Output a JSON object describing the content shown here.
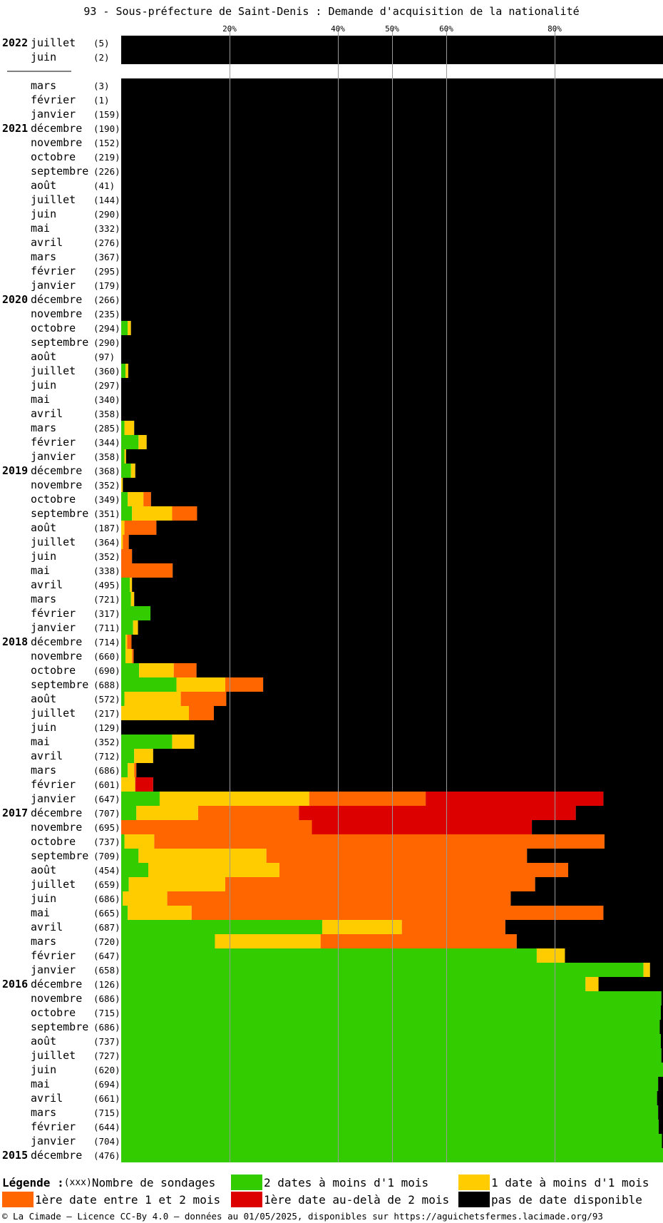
{
  "title": "93 - Sous-préfecture de Saint-Denis : Demande d'acquisition de la nationalité",
  "colors": {
    "green": "#33cc00",
    "yellow": "#ffcc00",
    "orange": "#ff6600",
    "red": "#dd0000",
    "black": "#000000"
  },
  "legend": {
    "title": "Légende :",
    "count_key": "(xxx)",
    "count_label": "Nombre de sondages",
    "green": "2 dates à moins d'1 mois",
    "yellow": "1 date à moins d'1 mois",
    "orange": "1ère date entre 1 et 2 mois",
    "red": "1ère date au-delà de 2 mois",
    "black": "pas de date disponible"
  },
  "footer": "© La Cimade — Licence CC-By 4.0 — données au 01/05/2025, disponibles sur https://aguichetsfermes.lacimade.org/93",
  "chart_data": {
    "type": "bar",
    "orientation": "horizontal",
    "stacked": true,
    "unit": "%",
    "x_ticks": [
      "20%",
      "40%",
      "50%",
      "60%",
      "80%"
    ],
    "tick_values": [
      20,
      40,
      50,
      60,
      80
    ],
    "xlim": [
      0,
      100
    ],
    "grid": true,
    "series_order": [
      "green",
      "yellow",
      "orange",
      "red",
      "black"
    ],
    "rows": [
      {
        "year": "2022",
        "month": "juillet",
        "count": "(5)",
        "green": 0,
        "yellow": 0,
        "orange": 0,
        "red": 0,
        "black": 100
      },
      {
        "year": "",
        "month": "juin",
        "count": "(2)",
        "green": 0,
        "yellow": 0,
        "orange": 0,
        "red": 0,
        "black": 100
      },
      {
        "year": "",
        "month": "mars",
        "count": "(3)",
        "green": 0,
        "yellow": 0,
        "orange": 0,
        "red": 0,
        "black": 100
      },
      {
        "year": "",
        "month": "février",
        "count": "(1)",
        "green": 0,
        "yellow": 0,
        "orange": 0,
        "red": 0,
        "black": 100
      },
      {
        "year": "",
        "month": "janvier",
        "count": "(159)",
        "green": 0,
        "yellow": 0,
        "orange": 0,
        "red": 0,
        "black": 100
      },
      {
        "year": "2021",
        "month": "décembre",
        "count": "(190)",
        "green": 0,
        "yellow": 0,
        "orange": 0,
        "red": 0,
        "black": 100
      },
      {
        "year": "",
        "month": "novembre",
        "count": "(152)",
        "green": 0,
        "yellow": 0,
        "orange": 0,
        "red": 0,
        "black": 100
      },
      {
        "year": "",
        "month": "octobre",
        "count": "(219)",
        "green": 0,
        "yellow": 0,
        "orange": 0,
        "red": 0,
        "black": 100
      },
      {
        "year": "",
        "month": "septembre",
        "count": "(226)",
        "green": 0,
        "yellow": 0,
        "orange": 0,
        "red": 0,
        "black": 100
      },
      {
        "year": "",
        "month": "août",
        "count": "(41)",
        "green": 0,
        "yellow": 0,
        "orange": 0,
        "red": 0,
        "black": 100
      },
      {
        "year": "",
        "month": "juillet",
        "count": "(144)",
        "green": 0,
        "yellow": 0,
        "orange": 0,
        "red": 0,
        "black": 100
      },
      {
        "year": "",
        "month": "juin",
        "count": "(290)",
        "green": 0,
        "yellow": 0,
        "orange": 0,
        "red": 0,
        "black": 100
      },
      {
        "year": "",
        "month": "mai",
        "count": "(332)",
        "green": 0,
        "yellow": 0,
        "orange": 0,
        "red": 0,
        "black": 100
      },
      {
        "year": "",
        "month": "avril",
        "count": "(276)",
        "green": 0,
        "yellow": 0,
        "orange": 0,
        "red": 0,
        "black": 100
      },
      {
        "year": "",
        "month": "mars",
        "count": "(367)",
        "green": 0,
        "yellow": 0,
        "orange": 0,
        "red": 0,
        "black": 100
      },
      {
        "year": "",
        "month": "février",
        "count": "(295)",
        "green": 0,
        "yellow": 0,
        "orange": 0,
        "red": 0,
        "black": 100
      },
      {
        "year": "",
        "month": "janvier",
        "count": "(179)",
        "green": 0,
        "yellow": 0,
        "orange": 0,
        "red": 0,
        "black": 100
      },
      {
        "year": "2020",
        "month": "décembre",
        "count": "(266)",
        "green": 0,
        "yellow": 0,
        "orange": 0,
        "red": 0,
        "black": 100
      },
      {
        "year": "",
        "month": "novembre",
        "count": "(235)",
        "green": 0,
        "yellow": 0,
        "orange": 0,
        "red": 0,
        "black": 100
      },
      {
        "year": "",
        "month": "octobre",
        "count": "(294)",
        "green": 1.2,
        "yellow": 0.6,
        "orange": 0,
        "red": 0,
        "black": 98.2
      },
      {
        "year": "",
        "month": "septembre",
        "count": "(290)",
        "green": 0,
        "yellow": 0,
        "orange": 0,
        "red": 0,
        "black": 100
      },
      {
        "year": "",
        "month": "août",
        "count": "(97)",
        "green": 0,
        "yellow": 0,
        "orange": 0,
        "red": 0,
        "black": 100
      },
      {
        "year": "",
        "month": "juillet",
        "count": "(360)",
        "green": 0.8,
        "yellow": 0.5,
        "orange": 0,
        "red": 0,
        "black": 98.7
      },
      {
        "year": "",
        "month": "juin",
        "count": "(297)",
        "green": 0,
        "yellow": 0,
        "orange": 0,
        "red": 0,
        "black": 100
      },
      {
        "year": "",
        "month": "mai",
        "count": "(340)",
        "green": 0,
        "yellow": 0,
        "orange": 0,
        "red": 0,
        "black": 100
      },
      {
        "year": "",
        "month": "avril",
        "count": "(358)",
        "green": 0,
        "yellow": 0,
        "orange": 0,
        "red": 0,
        "black": 100
      },
      {
        "year": "",
        "month": "mars",
        "count": "(285)",
        "green": 0.6,
        "yellow": 1.8,
        "orange": 0,
        "red": 0,
        "black": 97.6
      },
      {
        "year": "",
        "month": "février",
        "count": "(344)",
        "green": 3.2,
        "yellow": 1.5,
        "orange": 0,
        "red": 0,
        "black": 95.3
      },
      {
        "year": "",
        "month": "janvier",
        "count": "(358)",
        "green": 0.6,
        "yellow": 0.3,
        "orange": 0,
        "red": 0,
        "black": 99.1
      },
      {
        "year": "2019",
        "month": "décembre",
        "count": "(368)",
        "green": 1.8,
        "yellow": 0.8,
        "orange": 0,
        "red": 0,
        "black": 97.4
      },
      {
        "year": "",
        "month": "novembre",
        "count": "(352)",
        "green": 0,
        "yellow": 0.3,
        "orange": 0,
        "red": 0,
        "black": 99.7
      },
      {
        "year": "",
        "month": "octobre",
        "count": "(349)",
        "green": 1.2,
        "yellow": 2.9,
        "orange": 1.4,
        "red": 0,
        "black": 94.5
      },
      {
        "year": "",
        "month": "septembre",
        "count": "(351)",
        "green": 2.0,
        "yellow": 7.4,
        "orange": 4.6,
        "red": 0,
        "black": 86.0
      },
      {
        "year": "",
        "month": "août",
        "count": "(187)",
        "green": 0,
        "yellow": 0.6,
        "orange": 5.9,
        "red": 0,
        "black": 93.5
      },
      {
        "year": "",
        "month": "juillet",
        "count": "(364)",
        "green": 0,
        "yellow": 0.3,
        "orange": 1.1,
        "red": 0,
        "black": 98.6
      },
      {
        "year": "",
        "month": "juin",
        "count": "(352)",
        "green": 0,
        "yellow": 0,
        "orange": 2.0,
        "red": 0,
        "black": 98.0
      },
      {
        "year": "",
        "month": "mai",
        "count": "(338)",
        "green": 0,
        "yellow": 0,
        "orange": 9.5,
        "red": 0,
        "black": 90.5
      },
      {
        "year": "",
        "month": "avril",
        "count": "(495)",
        "green": 1.6,
        "yellow": 0.4,
        "orange": 0,
        "red": 0,
        "black": 98.0
      },
      {
        "year": "",
        "month": "mars",
        "count": "(721)",
        "green": 1.8,
        "yellow": 0.6,
        "orange": 0,
        "red": 0,
        "black": 97.6
      },
      {
        "year": "",
        "month": "février",
        "count": "(317)",
        "green": 5.4,
        "yellow": 0,
        "orange": 0,
        "red": 0,
        "black": 94.6
      },
      {
        "year": "",
        "month": "janvier",
        "count": "(711)",
        "green": 2.2,
        "yellow": 0.9,
        "orange": 0,
        "red": 0,
        "black": 96.9
      },
      {
        "year": "2018",
        "month": "décembre",
        "count": "(714)",
        "green": 0.8,
        "yellow": 0.3,
        "orange": 0.8,
        "red": 0,
        "black": 98.1
      },
      {
        "year": "",
        "month": "novembre",
        "count": "(660)",
        "green": 0.8,
        "yellow": 1.2,
        "orange": 0.3,
        "red": 0,
        "black": 97.7
      },
      {
        "year": "",
        "month": "octobre",
        "count": "(690)",
        "green": 3.3,
        "yellow": 6.4,
        "orange": 4.2,
        "red": 0,
        "black": 86.1
      },
      {
        "year": "",
        "month": "septembre",
        "count": "(688)",
        "green": 10.2,
        "yellow": 9.0,
        "orange": 7.0,
        "red": 0,
        "black": 73.8
      },
      {
        "year": "",
        "month": "août",
        "count": "(572)",
        "green": 0.6,
        "yellow": 10.4,
        "orange": 8.4,
        "red": 0,
        "black": 80.6
      },
      {
        "year": "",
        "month": "juillet",
        "count": "(217)",
        "green": 0,
        "yellow": 12.5,
        "orange": 4.6,
        "red": 0,
        "black": 82.9
      },
      {
        "year": "",
        "month": "juin",
        "count": "(129)",
        "green": 0,
        "yellow": 0,
        "orange": 0,
        "red": 0,
        "black": 100
      },
      {
        "year": "",
        "month": "mai",
        "count": "(352)",
        "green": 9.4,
        "yellow": 4.1,
        "orange": 0,
        "red": 0,
        "black": 86.5
      },
      {
        "year": "",
        "month": "avril",
        "count": "(712)",
        "green": 2.4,
        "yellow": 3.5,
        "orange": 0,
        "red": 0,
        "black": 94.1
      },
      {
        "year": "",
        "month": "mars",
        "count": "(686)",
        "green": 1.2,
        "yellow": 1.2,
        "orange": 0.4,
        "red": 0,
        "black": 97.2
      },
      {
        "year": "",
        "month": "février",
        "count": "(601)",
        "green": 0,
        "yellow": 2.6,
        "orange": 0,
        "red": 3.3,
        "black": 94.1
      },
      {
        "year": "",
        "month": "janvier",
        "count": "(647)",
        "green": 7.1,
        "yellow": 27.6,
        "orange": 21.5,
        "red": 32.8,
        "black": 11.0
      },
      {
        "year": "2017",
        "month": "décembre",
        "count": "(707)",
        "green": 2.8,
        "yellow": 11.4,
        "orange": 18.6,
        "red": 51.1,
        "black": 16.1
      },
      {
        "year": "",
        "month": "novembre",
        "count": "(695)",
        "green": 0,
        "yellow": 0,
        "orange": 35.2,
        "red": 40.6,
        "black": 24.2
      },
      {
        "year": "",
        "month": "octobre",
        "count": "(737)",
        "green": 0.6,
        "yellow": 5.5,
        "orange": 83.1,
        "red": 0,
        "black": 10.8
      },
      {
        "year": "",
        "month": "septembre",
        "count": "(709)",
        "green": 3.2,
        "yellow": 23.6,
        "orange": 48.1,
        "red": 0,
        "black": 25.1
      },
      {
        "year": "",
        "month": "août",
        "count": "(454)",
        "green": 5.0,
        "yellow": 24.2,
        "orange": 53.3,
        "red": 0,
        "black": 17.5
      },
      {
        "year": "",
        "month": "juillet",
        "count": "(659)",
        "green": 1.4,
        "yellow": 17.8,
        "orange": 57.2,
        "red": 0,
        "black": 23.6
      },
      {
        "year": "",
        "month": "juin",
        "count": "(686)",
        "green": 0.3,
        "yellow": 8.2,
        "orange": 63.4,
        "red": 0,
        "black": 28.1
      },
      {
        "year": "",
        "month": "mai",
        "count": "(665)",
        "green": 1.2,
        "yellow": 11.8,
        "orange": 76.0,
        "red": 0,
        "black": 11.0
      },
      {
        "year": "",
        "month": "avril",
        "count": "(687)",
        "green": 37.1,
        "yellow": 14.7,
        "orange": 19.1,
        "red": 0,
        "black": 29.1
      },
      {
        "year": "",
        "month": "mars",
        "count": "(720)",
        "green": 17.3,
        "yellow": 19.5,
        "orange": 36.2,
        "red": 0,
        "black": 27.0
      },
      {
        "year": "",
        "month": "février",
        "count": "(647)",
        "green": 76.7,
        "yellow": 5.2,
        "orange": 0,
        "red": 0,
        "black": 18.1
      },
      {
        "year": "",
        "month": "janvier",
        "count": "(658)",
        "green": 96.4,
        "yellow": 1.2,
        "orange": 0,
        "red": 0,
        "black": 2.4
      },
      {
        "year": "2016",
        "month": "décembre",
        "count": "(126)",
        "green": 85.7,
        "yellow": 2.4,
        "orange": 0,
        "red": 0,
        "black": 11.9
      },
      {
        "year": "",
        "month": "novembre",
        "count": "(686)",
        "green": 99.7,
        "yellow": 0,
        "orange": 0,
        "red": 0,
        "black": 0.3
      },
      {
        "year": "",
        "month": "octobre",
        "count": "(715)",
        "green": 99.6,
        "yellow": 0,
        "orange": 0,
        "red": 0,
        "black": 0.4
      },
      {
        "year": "",
        "month": "septembre",
        "count": "(686)",
        "green": 99.4,
        "yellow": 0,
        "orange": 0,
        "red": 0,
        "black": 0.6
      },
      {
        "year": "",
        "month": "août",
        "count": "(737)",
        "green": 99.6,
        "yellow": 0,
        "orange": 0,
        "red": 0,
        "black": 0.4
      },
      {
        "year": "",
        "month": "juillet",
        "count": "(727)",
        "green": 99.7,
        "yellow": 0,
        "orange": 0,
        "red": 0,
        "black": 0.3
      },
      {
        "year": "",
        "month": "juin",
        "count": "(620)",
        "green": 100,
        "yellow": 0,
        "orange": 0,
        "red": 0,
        "black": 0
      },
      {
        "year": "",
        "month": "mai",
        "count": "(694)",
        "green": 99.1,
        "yellow": 0,
        "orange": 0,
        "red": 0,
        "black": 0.9
      },
      {
        "year": "",
        "month": "avril",
        "count": "(661)",
        "green": 98.9,
        "yellow": 0,
        "orange": 0,
        "red": 0,
        "black": 1.1
      },
      {
        "year": "",
        "month": "mars",
        "count": "(715)",
        "green": 99.1,
        "yellow": 0,
        "orange": 0,
        "red": 0,
        "black": 0.9
      },
      {
        "year": "",
        "month": "février",
        "count": "(644)",
        "green": 99.2,
        "yellow": 0,
        "orange": 0,
        "red": 0,
        "black": 0.8
      },
      {
        "year": "",
        "month": "janvier",
        "count": "(704)",
        "green": 99.8,
        "yellow": 0,
        "orange": 0,
        "red": 0,
        "black": 0.2
      },
      {
        "year": "2015",
        "month": "décembre",
        "count": "(476)",
        "green": 100,
        "yellow": 0,
        "orange": 0,
        "red": 0,
        "black": 0
      }
    ]
  }
}
